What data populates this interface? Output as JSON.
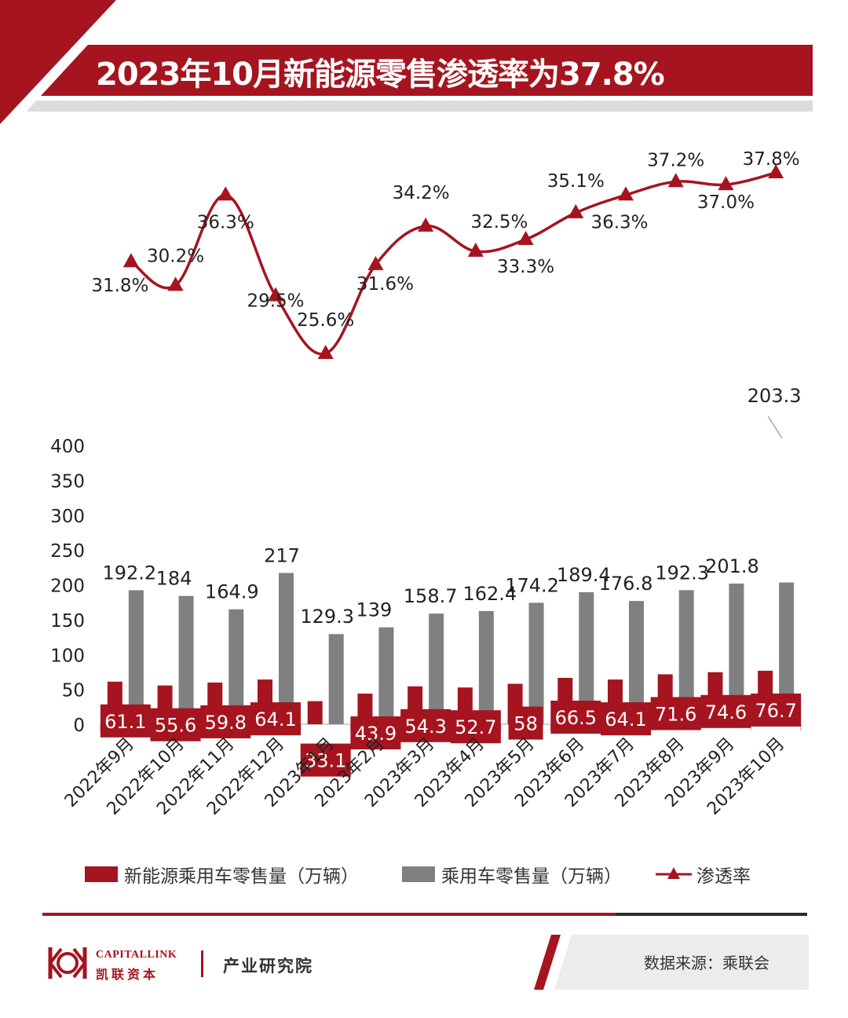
{
  "header": {
    "title": "2023年10月新能源零售渗透率为37.8%"
  },
  "legend": {
    "nev": "新能源乘用车零售量（万辆）",
    "total": "乘用车零售量（万辆）",
    "rate": "渗透率"
  },
  "footer": {
    "brand_en": "CAPITALLINK",
    "brand_cn": "凯联资本",
    "institute": "产业研究院",
    "source": "数据来源：乘联会"
  },
  "colors": {
    "red": "#a5141f",
    "gray": "#808080",
    "dark": "#2b2b2b"
  },
  "chart_data": {
    "type": "bar",
    "title": "2023年10月新能源零售渗透率为37.8%",
    "categories": [
      "2022年9月",
      "2022年10月",
      "2022年11月",
      "2022年12月",
      "2023年1月",
      "2023年2月",
      "2023年3月",
      "2023年4月",
      "2023年5月",
      "2023年6月",
      "2023年7月",
      "2023年8月",
      "2023年9月",
      "2023年10月"
    ],
    "series": [
      {
        "name": "新能源乘用车零售量（万辆）",
        "type": "bar",
        "values": [
          61.1,
          55.6,
          59.8,
          64.1,
          33.1,
          43.9,
          54.3,
          52.7,
          58,
          66.5,
          64.1,
          71.6,
          74.6,
          76.7
        ],
        "labels": [
          "61.1",
          "55.6",
          "59.8",
          "64.1",
          "33.1",
          "43.9",
          "54.3",
          "52.7",
          "58",
          "66.5",
          "64.1",
          "71.6",
          "74.6",
          "76.7"
        ]
      },
      {
        "name": "乘用车零售量（万辆）",
        "type": "bar",
        "values": [
          192.2,
          184,
          164.9,
          217,
          129.3,
          139,
          158.7,
          162.4,
          174.2,
          189.4,
          176.8,
          192.3,
          201.8,
          203.3
        ],
        "labels": [
          "192.2",
          "184",
          "164.9",
          "217",
          "129.3",
          "139",
          "158.7",
          "162.4",
          "174.2",
          "189.4",
          "176.8",
          "192.3",
          "201.8",
          "203.3"
        ]
      },
      {
        "name": "渗透率",
        "type": "line",
        "values": [
          31.8,
          30.2,
          36.3,
          29.5,
          25.6,
          31.6,
          34.2,
          32.5,
          33.3,
          35.1,
          36.3,
          37.2,
          37.0,
          37.8
        ],
        "labels": [
          "31.8%",
          "30.2%",
          "36.3%",
          "29.5%",
          "25.6%",
          "31.6%",
          "34.2%",
          "32.5%",
          "33.3%",
          "35.1%",
          "36.3%",
          "37.2%",
          "37.0%",
          "37.8%"
        ]
      }
    ],
    "y_ticks": [
      "0",
      "50",
      "100",
      "150",
      "200",
      "250",
      "300",
      "350",
      "400"
    ],
    "ylim": [
      0,
      400
    ],
    "grid": false,
    "legend_position": "bottom"
  }
}
